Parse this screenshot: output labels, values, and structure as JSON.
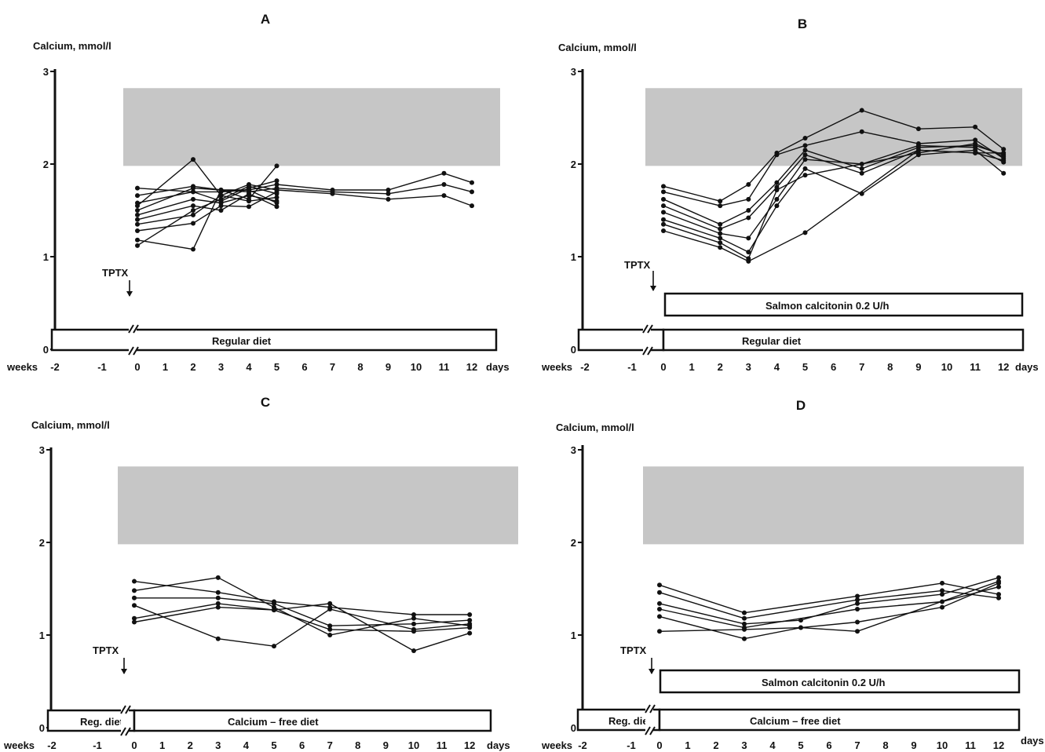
{
  "colors": {
    "ink": "#111111",
    "normal_band": "#c6c6c6",
    "background": "#ffffff"
  },
  "chart_data": [
    {
      "panel": "A",
      "type": "line",
      "ylabel": "Calcium, mmol/l",
      "ylim": [
        0,
        3
      ],
      "yticks": [
        "0",
        "1",
        "2",
        "3"
      ],
      "x_weeks_label": "weeks",
      "x_weeks_ticks": [
        "-2",
        "-1"
      ],
      "x_days_label": "days",
      "x_days_ticks": [
        "0",
        "1",
        "2",
        "3",
        "4",
        "5",
        "6",
        "7",
        "8",
        "9",
        "10",
        "11",
        "12"
      ],
      "normal_range": [
        1.98,
        2.82
      ],
      "event_label": "TPTX",
      "diet_boxes": [
        {
          "label": "Regular diet"
        }
      ],
      "infusion_box": null,
      "series": [
        {
          "x": [
            0,
            2,
            3,
            4,
            5,
            7,
            9,
            11,
            12
          ],
          "y": [
            1.74,
            1.7,
            1.7,
            1.72,
            1.78,
            1.72,
            1.72,
            1.9,
            1.8
          ]
        },
        {
          "x": [
            0,
            2,
            3,
            4,
            5,
            7,
            9,
            11,
            12
          ],
          "y": [
            1.66,
            1.76,
            1.72,
            1.7,
            1.74,
            1.7,
            1.68,
            1.78,
            1.7
          ]
        },
        {
          "x": [
            0,
            2,
            3,
            4,
            5,
            7,
            9,
            11,
            12
          ],
          "y": [
            1.55,
            2.05,
            1.66,
            1.78,
            1.72,
            1.68,
            1.62,
            1.66,
            1.55
          ]
        },
        {
          "x": [
            0,
            2,
            3,
            4,
            5
          ],
          "y": [
            1.58,
            1.7,
            1.6,
            1.74,
            1.82
          ]
        },
        {
          "x": [
            0,
            2,
            3,
            4,
            5
          ],
          "y": [
            1.5,
            1.74,
            1.72,
            1.62,
            1.98
          ]
        },
        {
          "x": [
            0,
            2,
            3,
            4,
            5
          ],
          "y": [
            1.45,
            1.62,
            1.58,
            1.66,
            1.6
          ]
        },
        {
          "x": [
            0,
            2,
            3,
            4,
            5
          ],
          "y": [
            1.4,
            1.55,
            1.5,
            1.68,
            1.54
          ]
        },
        {
          "x": [
            0,
            2,
            3,
            4,
            5
          ],
          "y": [
            1.35,
            1.45,
            1.66,
            1.6,
            1.64
          ]
        },
        {
          "x": [
            0,
            2,
            3,
            4,
            5
          ],
          "y": [
            1.28,
            1.36,
            1.55,
            1.54,
            1.7
          ]
        },
        {
          "x": [
            0,
            2,
            3,
            4,
            5
          ],
          "y": [
            1.18,
            1.08,
            1.72,
            1.72,
            1.58
          ]
        },
        {
          "x": [
            0,
            2,
            3,
            4,
            5
          ],
          "y": [
            1.12,
            1.5,
            1.62,
            1.76,
            1.68
          ]
        }
      ]
    },
    {
      "panel": "B",
      "type": "line",
      "ylabel": "Calcium, mmol/l",
      "ylim": [
        0,
        3
      ],
      "yticks": [
        "0",
        "1",
        "2",
        "3"
      ],
      "x_weeks_label": "weeks",
      "x_weeks_ticks": [
        "-2",
        "-1"
      ],
      "x_days_label": "days",
      "x_days_ticks": [
        "0",
        "1",
        "2",
        "3",
        "4",
        "5",
        "6",
        "7",
        "8",
        "9",
        "10",
        "11",
        "12"
      ],
      "normal_range": [
        1.98,
        2.82
      ],
      "event_label": "TPTX",
      "diet_boxes": [
        {
          "label": ""
        },
        {
          "label": "Regular diet"
        }
      ],
      "infusion_box": {
        "label": "Salmon  calcitonin  0.2 U/h"
      },
      "series": [
        {
          "x": [
            0,
            2,
            3,
            4,
            5,
            7,
            9,
            11,
            12
          ],
          "y": [
            1.76,
            1.6,
            1.78,
            2.12,
            2.28,
            2.58,
            2.38,
            2.4,
            2.16
          ]
        },
        {
          "x": [
            0,
            2,
            3,
            4,
            5,
            7,
            9,
            11,
            12
          ],
          "y": [
            1.7,
            1.55,
            1.62,
            2.1,
            2.2,
            2.35,
            2.22,
            2.26,
            2.06
          ]
        },
        {
          "x": [
            0,
            2,
            3,
            4,
            5,
            7,
            9,
            11,
            12
          ],
          "y": [
            1.62,
            1.35,
            1.5,
            1.8,
            2.15,
            1.95,
            2.18,
            2.2,
            2.1
          ]
        },
        {
          "x": [
            0,
            2,
            3,
            4,
            5,
            7,
            9,
            11,
            12
          ],
          "y": [
            1.55,
            1.3,
            1.42,
            1.75,
            2.1,
            1.9,
            2.15,
            2.12,
            2.12
          ]
        },
        {
          "x": [
            0,
            2,
            3,
            4,
            5,
            7,
            9,
            11,
            12
          ],
          "y": [
            1.48,
            1.25,
            1.2,
            1.62,
            2.05,
            2.0,
            2.2,
            2.18,
            2.02
          ]
        },
        {
          "x": [
            0,
            2,
            3,
            4,
            5,
            7,
            9,
            11,
            12
          ],
          "y": [
            1.4,
            1.2,
            1.05,
            1.55,
            1.95,
            1.68,
            2.1,
            2.15,
            1.9
          ]
        },
        {
          "x": [
            0,
            2,
            3,
            4,
            5,
            9,
            11,
            12
          ],
          "y": [
            1.35,
            1.15,
            0.98,
            1.72,
            1.88,
            2.12,
            2.22,
            2.08
          ]
        },
        {
          "x": [
            0,
            2,
            3,
            5,
            9,
            11,
            12
          ],
          "y": [
            1.28,
            1.1,
            0.95,
            1.26,
            2.15,
            2.12,
            2.04
          ]
        }
      ]
    },
    {
      "panel": "C",
      "type": "line",
      "ylabel": "Calcium, mmol/l",
      "ylim": [
        0,
        3
      ],
      "yticks": [
        "0",
        "1",
        "2",
        "3"
      ],
      "x_weeks_label": "weeks",
      "x_weeks_ticks": [
        "-2",
        "-1"
      ],
      "x_days_label": "days",
      "x_days_ticks": [
        "0",
        "1",
        "2",
        "3",
        "4",
        "5",
        "6",
        "7",
        "8",
        "9",
        "10",
        "11",
        "12"
      ],
      "normal_range": [
        1.98,
        2.82
      ],
      "event_label": "TPTX",
      "diet_boxes": [
        {
          "label": "Reg. diet"
        },
        {
          "label": "Calcium  –  free  diet"
        }
      ],
      "infusion_box": null,
      "series": [
        {
          "x": [
            0,
            3,
            5,
            7,
            10,
            12
          ],
          "y": [
            1.58,
            1.46,
            1.36,
            1.3,
            1.22,
            1.22
          ]
        },
        {
          "x": [
            0,
            3,
            5,
            7,
            10,
            12
          ],
          "y": [
            1.48,
            1.62,
            1.3,
            1.0,
            1.18,
            1.1
          ]
        },
        {
          "x": [
            0,
            3,
            5,
            7,
            10,
            12
          ],
          "y": [
            1.4,
            1.4,
            1.34,
            1.1,
            1.12,
            1.16
          ]
        },
        {
          "x": [
            0,
            3,
            5,
            7,
            10,
            12
          ],
          "y": [
            1.32,
            0.96,
            0.88,
            1.28,
            1.06,
            1.12
          ]
        },
        {
          "x": [
            0,
            3,
            5,
            7,
            10,
            12
          ],
          "y": [
            1.18,
            1.34,
            1.27,
            1.06,
            1.04,
            1.08
          ]
        },
        {
          "x": [
            0,
            3,
            5,
            7,
            10,
            12
          ],
          "y": [
            1.14,
            1.3,
            1.27,
            1.34,
            0.83,
            1.02
          ]
        }
      ]
    },
    {
      "panel": "D",
      "type": "line",
      "ylabel": "Calcium, mmol/l",
      "ylim": [
        0,
        3
      ],
      "yticks": [
        "0",
        "1",
        "2",
        "3"
      ],
      "x_weeks_label": "weeks",
      "x_weeks_ticks": [
        "-2",
        "-1"
      ],
      "x_days_label": "days",
      "x_days_ticks": [
        "0",
        "1",
        "2",
        "3",
        "4",
        "5",
        "6",
        "7",
        "8",
        "9",
        "10",
        "11",
        "12"
      ],
      "normal_range": [
        1.98,
        2.82
      ],
      "event_label": "TPTX",
      "diet_boxes": [
        {
          "label": "Reg.  diet"
        },
        {
          "label": "Calcium  –  free  diet"
        }
      ],
      "infusion_box": {
        "label": "Salmon  calcitonin  0.2 U/h"
      },
      "series": [
        {
          "x": [
            0,
            3,
            7,
            10,
            12
          ],
          "y": [
            1.54,
            1.24,
            1.42,
            1.56,
            1.44
          ]
        },
        {
          "x": [
            0,
            3,
            7,
            10,
            12
          ],
          "y": [
            1.46,
            1.18,
            1.38,
            1.48,
            1.4
          ]
        },
        {
          "x": [
            0,
            3,
            5,
            7,
            10,
            12
          ],
          "y": [
            1.34,
            1.12,
            1.16,
            1.34,
            1.44,
            1.62
          ]
        },
        {
          "x": [
            0,
            3,
            7,
            10,
            12
          ],
          "y": [
            1.28,
            1.08,
            1.28,
            1.36,
            1.52
          ]
        },
        {
          "x": [
            0,
            3,
            5,
            7,
            10,
            12
          ],
          "y": [
            1.2,
            0.96,
            1.08,
            1.14,
            1.3,
            1.56
          ]
        },
        {
          "x": [
            0,
            3,
            5,
            7,
            12
          ],
          "y": [
            1.04,
            1.06,
            1.08,
            1.04,
            1.58
          ]
        }
      ]
    }
  ]
}
